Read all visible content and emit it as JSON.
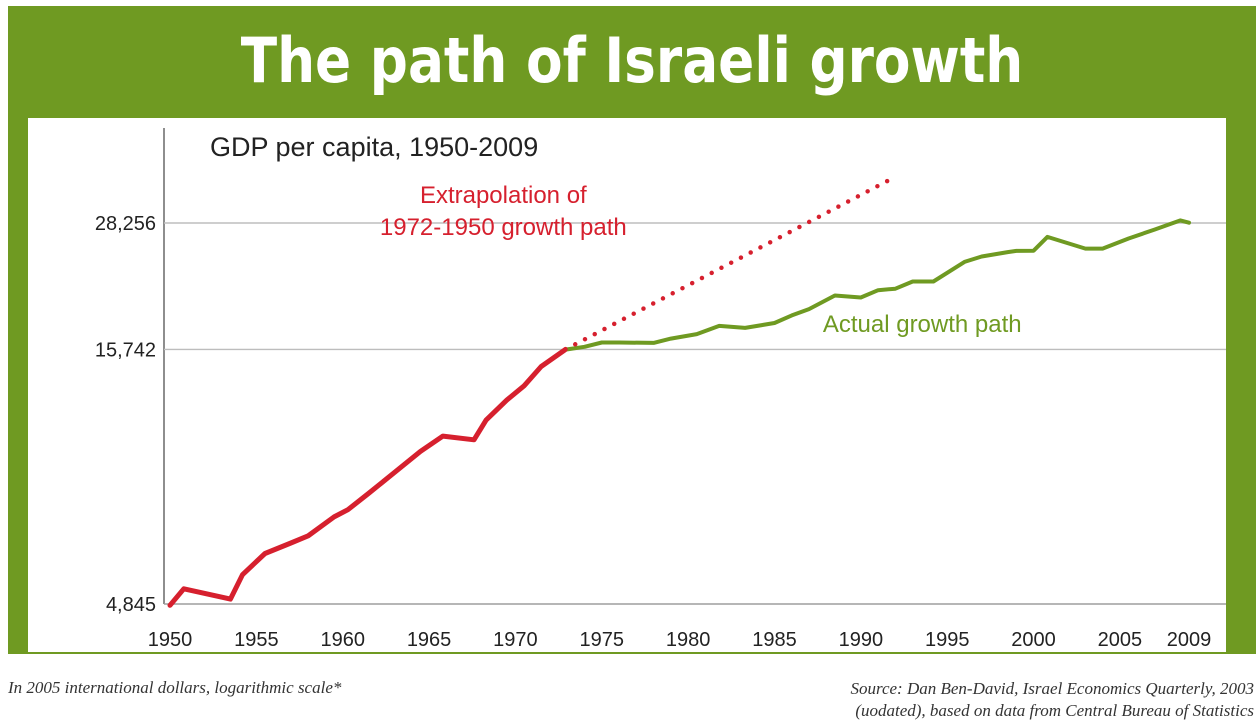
{
  "banner": {
    "title": "The path of Israeli growth"
  },
  "footer": {
    "note": "In 2005 international dollars, logarithmic scale*",
    "source_line1": "Source: Dan Ben-David, Israel Economics Quarterly, 2003",
    "source_line2": "(uodated), based on data from Central Bureau of Statistics"
  },
  "colors": {
    "frame": "#6f9a22",
    "actual": "#6f9a22",
    "extrapolation": "#d6202e",
    "grid": "#bdbdbd",
    "text": "#222222"
  },
  "chart_data": {
    "type": "line",
    "title": "GDP per capita, 1950-2009",
    "y_scale": "log",
    "xlim": [
      1950,
      2009
    ],
    "ylim": [
      4845,
      38000
    ],
    "x_ticks": [
      1950,
      1955,
      1960,
      1965,
      1970,
      1975,
      1980,
      1985,
      1990,
      1995,
      2000,
      2005,
      2009
    ],
    "y_ticks": [
      {
        "value": 4845,
        "label": "4,845"
      },
      {
        "value": 15742,
        "label": "15,742"
      },
      {
        "value": 28256,
        "label": "28,256"
      }
    ],
    "grid": "horizontal",
    "series": [
      {
        "color": "#d6202e",
        "style": "solid",
        "x": [
          1950.0,
          1950.8,
          1953.5,
          1954.2,
          1955.5,
          1957.0,
          1958.0,
          1959.5,
          1960.3,
          1961.5,
          1963.0,
          1964.5,
          1965.8,
          1967.6,
          1968.3,
          1969.5,
          1970.5,
          1971.5,
          1972.9
        ],
        "y": [
          4815,
          5198,
          4955,
          5549,
          6121,
          6426,
          6642,
          7250,
          7496,
          8082,
          8910,
          9820,
          10540,
          10360,
          11350,
          12450,
          13300,
          14550,
          15740
        ]
      },
      {
        "color": "#6f9a22",
        "style": "solid",
        "x": [
          1973.0,
          1974.0,
          1975.0,
          1976.0,
          1978.0,
          1979.0,
          1980.5,
          1981.8,
          1983.3,
          1985.0,
          1986.0,
          1987.0,
          1988.5,
          1990.0,
          1991.0,
          1992.0,
          1993.0,
          1994.2,
          1996.0,
          1997.0,
          1998.5,
          1999.0,
          2000.0,
          2000.8,
          2003.0,
          2004.0,
          2005.5,
          2007.0,
          2008.5,
          2009.0
        ],
        "y": [
          15740,
          15930,
          16250,
          16250,
          16220,
          16550,
          16900,
          17550,
          17390,
          17790,
          18420,
          18970,
          20200,
          20020,
          20700,
          20850,
          21550,
          21550,
          23600,
          24200,
          24700,
          24830,
          24860,
          26500,
          25100,
          25100,
          26300,
          27400,
          28600,
          28300
        ]
      },
      {
        "color": "#d6202e",
        "style": "dotted",
        "x": [
          1972.9,
          1992.0
        ],
        "y": [
          15740,
          35000
        ]
      }
    ],
    "annotations": [
      {
        "text_lines": [
          "Extrapolation of",
          "1972-1950 growth path"
        ],
        "color": "#d6202e",
        "at_x": 1969.3,
        "at_y": [
          31000,
          26700
        ]
      },
      {
        "text": "Actual growth path",
        "color": "#6f9a22",
        "at_x": 1987.8,
        "at_y": 17550
      }
    ]
  }
}
